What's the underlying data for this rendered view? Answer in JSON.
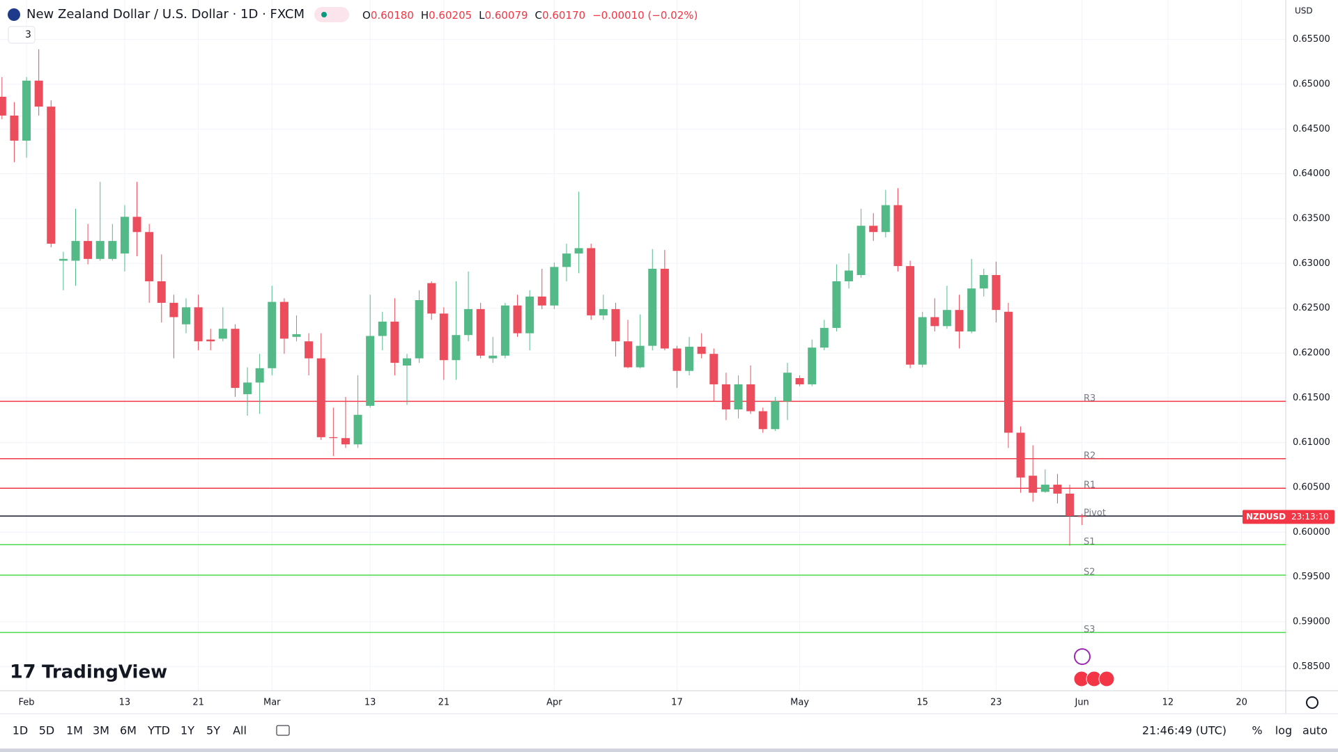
{
  "header": {
    "symbol": "New Zealand Dollar / U.S. Dollar · 1D · FXCM",
    "ohlc": [
      {
        "key": "O",
        "value": "0.60180"
      },
      {
        "key": "H",
        "value": "0.60205"
      },
      {
        "key": "L",
        "value": "0.60079"
      },
      {
        "key": "C",
        "value": "0.60170"
      }
    ],
    "change": "−0.00010 (−0.02%)",
    "indicators_count": "3"
  },
  "chart_data": {
    "type": "candlestick",
    "currency": "USD",
    "symbol_tag": "NZDUSD",
    "countdown": "23:13:10",
    "up_color": "#53b987",
    "down_color": "#eb4d5c",
    "x": [
      -2,
      -1,
      0,
      1,
      2,
      3,
      4,
      5,
      6,
      7,
      8,
      9,
      10,
      11,
      12,
      13,
      14,
      15,
      16,
      17,
      18,
      19,
      20,
      21,
      22,
      23,
      24,
      25,
      26,
      27,
      28,
      29,
      30,
      31,
      32,
      33,
      34,
      35,
      36,
      37,
      38,
      39,
      40,
      41,
      42,
      43,
      44,
      45,
      46,
      47,
      48,
      49,
      50,
      51,
      52,
      53,
      54,
      55,
      56,
      57,
      58,
      59,
      60,
      61,
      62,
      63,
      64,
      65,
      66,
      67,
      68,
      69,
      70,
      71,
      72,
      73,
      74,
      75,
      76,
      77,
      78,
      79,
      80,
      81,
      82,
      83,
      84,
      85,
      86
    ],
    "open": [
      0.6486,
      0.6465,
      0.6437,
      0.6504,
      0.6475,
      0.6303,
      0.6303,
      0.6325,
      0.6305,
      0.6305,
      0.6311,
      0.6352,
      0.6335,
      0.628,
      0.6256,
      0.6232,
      0.6251,
      0.6215,
      0.6216,
      0.6227,
      0.6154,
      0.6167,
      0.6183,
      0.6257,
      0.6218,
      0.6213,
      0.6194,
      0.6106,
      0.6105,
      0.6098,
      0.6141,
      0.6219,
      0.6235,
      0.6186,
      0.6194,
      0.6278,
      0.6244,
      0.6192,
      0.622,
      0.6249,
      0.6194,
      0.6197,
      0.6253,
      0.6222,
      0.6263,
      0.6253,
      0.6296,
      0.6311,
      0.6317,
      0.6242,
      0.6249,
      0.6213,
      0.6184,
      0.6208,
      0.6294,
      0.6205,
      0.618,
      0.6207,
      0.6199,
      0.6165,
      0.6137,
      0.6165,
      0.6135,
      0.6115,
      0.6146,
      0.6172,
      0.6165,
      0.6206,
      0.6228,
      0.628,
      0.6287,
      0.6342,
      0.6335,
      0.6365,
      0.6297,
      0.6187,
      0.624,
      0.623,
      0.6248,
      0.6224,
      0.6272,
      0.6287,
      0.6246,
      0.6111,
      0.6063,
      0.6045,
      0.6053,
      0.6043,
      0.6018
    ],
    "high": [
      0.6508,
      0.648,
      0.6508,
      0.6539,
      0.6482,
      0.6313,
      0.6361,
      0.6344,
      0.6391,
      0.6344,
      0.6365,
      0.6391,
      0.6344,
      0.631,
      0.6265,
      0.6261,
      0.6265,
      0.6227,
      0.6251,
      0.6232,
      0.6184,
      0.6199,
      0.6275,
      0.6261,
      0.6242,
      0.6222,
      0.6222,
      0.6139,
      0.6151,
      0.6175,
      0.6265,
      0.6246,
      0.6261,
      0.6199,
      0.627,
      0.628,
      0.6251,
      0.628,
      0.6291,
      0.6256,
      0.6218,
      0.6256,
      0.6265,
      0.627,
      0.6294,
      0.6301,
      0.6322,
      0.638,
      0.6322,
      0.6265,
      0.6256,
      0.6237,
      0.6243,
      0.6316,
      0.6315,
      0.6208,
      0.6218,
      0.6222,
      0.6205,
      0.6178,
      0.6175,
      0.6186,
      0.6139,
      0.6151,
      0.6189,
      0.6175,
      0.6215,
      0.6237,
      0.6299,
      0.6311,
      0.6361,
      0.6356,
      0.6382,
      0.6384,
      0.6303,
      0.6246,
      0.6261,
      0.6275,
      0.6265,
      0.6305,
      0.6294,
      0.6302,
      0.6256,
      0.6118,
      0.6097,
      0.607,
      0.6065,
      0.6053,
      0.60205
    ],
    "low": [
      0.6461,
      0.6413,
      0.6418,
      0.6465,
      0.6318,
      0.627,
      0.6275,
      0.6299,
      0.6303,
      0.6303,
      0.6291,
      0.6308,
      0.6256,
      0.6234,
      0.6194,
      0.6222,
      0.6203,
      0.6203,
      0.6213,
      0.6151,
      0.613,
      0.6132,
      0.6175,
      0.6199,
      0.6213,
      0.6175,
      0.6103,
      0.6085,
      0.6094,
      0.6094,
      0.6139,
      0.6203,
      0.6175,
      0.6142,
      0.6189,
      0.6237,
      0.617,
      0.617,
      0.6213,
      0.6194,
      0.6189,
      0.6194,
      0.6218,
      0.6203,
      0.6249,
      0.6249,
      0.628,
      0.6289,
      0.6237,
      0.6237,
      0.6196,
      0.6183,
      0.6183,
      0.6203,
      0.6203,
      0.6161,
      0.6175,
      0.6194,
      0.6146,
      0.6125,
      0.6127,
      0.6132,
      0.6111,
      0.6113,
      0.6125,
      0.6163,
      0.6163,
      0.6203,
      0.6224,
      0.6272,
      0.6284,
      0.6325,
      0.6329,
      0.6291,
      0.6183,
      0.6184,
      0.6224,
      0.6227,
      0.6205,
      0.6222,
      0.6263,
      0.6234,
      0.6094,
      0.6044,
      0.6034,
      0.6044,
      0.6032,
      0.5985,
      0.60079
    ],
    "close": [
      0.6465,
      0.6437,
      0.6504,
      0.6475,
      0.6322,
      0.6305,
      0.6325,
      0.6305,
      0.6325,
      0.6325,
      0.6352,
      0.6335,
      0.628,
      0.6256,
      0.624,
      0.6251,
      0.6213,
      0.6213,
      0.6227,
      0.6161,
      0.6167,
      0.6183,
      0.6257,
      0.6216,
      0.6221,
      0.6194,
      0.6106,
      0.6105,
      0.6098,
      0.6131,
      0.6219,
      0.6235,
      0.6189,
      0.6194,
      0.6259,
      0.6244,
      0.6192,
      0.622,
      0.6249,
      0.6197,
      0.6197,
      0.6253,
      0.6222,
      0.6263,
      0.6253,
      0.6296,
      0.6311,
      0.6317,
      0.6242,
      0.6249,
      0.6213,
      0.6184,
      0.6208,
      0.6294,
      0.6205,
      0.618,
      0.6207,
      0.6199,
      0.6165,
      0.6137,
      0.6165,
      0.6135,
      0.6115,
      0.6146,
      0.6178,
      0.6165,
      0.6206,
      0.6228,
      0.628,
      0.6292,
      0.6342,
      0.6335,
      0.6365,
      0.6297,
      0.6187,
      0.624,
      0.623,
      0.6248,
      0.6224,
      0.6272,
      0.6287,
      0.6248,
      0.6111,
      0.6061,
      0.6044,
      0.6053,
      0.6043,
      0.6018,
      0.6017
    ],
    "xlim": [
      -2.16,
      102.6
    ],
    "ylim": [
      0.5823,
      0.6594
    ],
    "xticks": [
      {
        "value": 0,
        "label": "Feb"
      },
      {
        "value": 8,
        "label": "13"
      },
      {
        "value": 14,
        "label": "21"
      },
      {
        "value": 20,
        "label": "Mar"
      },
      {
        "value": 28,
        "label": "13"
      },
      {
        "value": 34,
        "label": "21"
      },
      {
        "value": 43,
        "label": "Apr"
      },
      {
        "value": 53,
        "label": "17"
      },
      {
        "value": 63,
        "label": "May"
      },
      {
        "value": 73,
        "label": "15"
      },
      {
        "value": 79,
        "label": "23"
      },
      {
        "value": 86,
        "label": "Jun"
      },
      {
        "value": 93,
        "label": "12"
      },
      {
        "value": 99,
        "label": "20"
      }
    ],
    "yticks": [
      {
        "value": 0.585,
        "label": "0.58500"
      },
      {
        "value": 0.59,
        "label": "0.59000"
      },
      {
        "value": 0.595,
        "label": "0.59500"
      },
      {
        "value": 0.6,
        "label": "0.60000"
      },
      {
        "value": 0.605,
        "label": "0.60500"
      },
      {
        "value": 0.61,
        "label": "0.61000"
      },
      {
        "value": 0.615,
        "label": "0.61500"
      },
      {
        "value": 0.62,
        "label": "0.62000"
      },
      {
        "value": 0.625,
        "label": "0.62500"
      },
      {
        "value": 0.63,
        "label": "0.63000"
      },
      {
        "value": 0.635,
        "label": "0.63500"
      },
      {
        "value": 0.64,
        "label": "0.64000"
      },
      {
        "value": 0.645,
        "label": "0.64500"
      },
      {
        "value": 0.65,
        "label": "0.65000"
      },
      {
        "value": 0.655,
        "label": "0.65500"
      }
    ],
    "grid": true,
    "levels": [
      {
        "name": "R3",
        "value": 0.6146,
        "color": "#f23645"
      },
      {
        "name": "R2",
        "value": 0.6082,
        "color": "#f23645"
      },
      {
        "name": "R1",
        "value": 0.6049,
        "color": "#f23645"
      },
      {
        "name": "Pivot",
        "value": 0.6018,
        "color": "#131722"
      },
      {
        "name": "S1",
        "value": 0.5986,
        "color": "#4cd94c"
      },
      {
        "name": "S2",
        "value": 0.5952,
        "color": "#4cd94c"
      },
      {
        "name": "S3",
        "value": 0.5888,
        "color": "#4cd94c"
      }
    ]
  },
  "footer": {
    "logo": "TradingView",
    "timeframes": [
      "1D",
      "5D",
      "1M",
      "3M",
      "6M",
      "YTD",
      "1Y",
      "5Y",
      "All"
    ],
    "clock": "21:46:49 (UTC)",
    "scale_options": [
      "%",
      "log",
      "auto"
    ]
  }
}
